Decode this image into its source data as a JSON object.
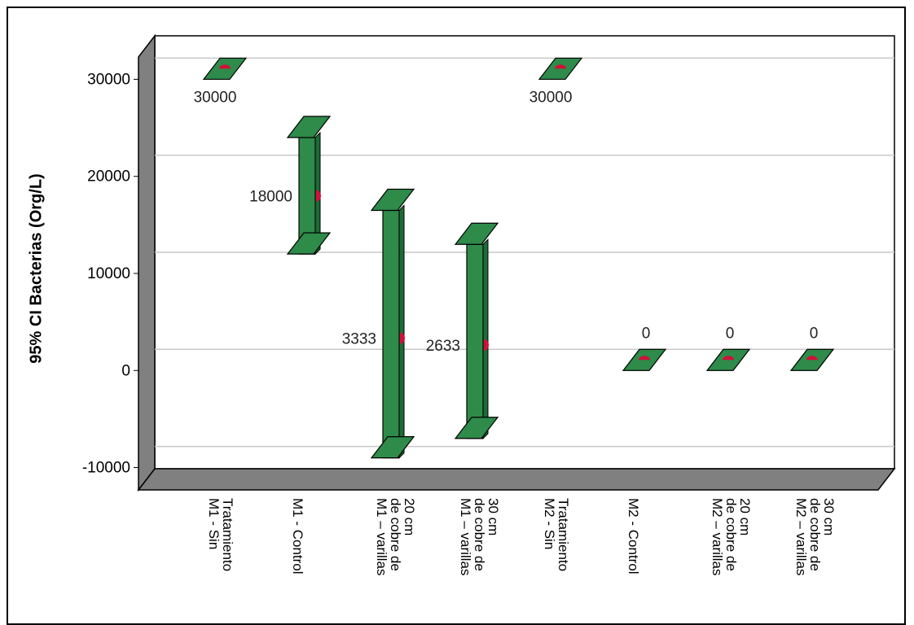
{
  "chart_data": {
    "type": "errorbar-3d",
    "ylabel": "95% CI Bacterias (Org/L)",
    "ylim": [
      -10000,
      30000
    ],
    "yticks": [
      -10000,
      0,
      10000,
      20000,
      30000
    ],
    "categories": [
      [
        "M1 - Sin",
        "Tratamiento"
      ],
      [
        "M1 - Control"
      ],
      [
        "M1 – varillas",
        "de cobre de",
        "20 cm"
      ],
      [
        "M1 – varillas",
        "de cobre de",
        "30 cm"
      ],
      [
        "M2 - Sin",
        "Tratamiento"
      ],
      [
        "M2 - Control"
      ],
      [
        "M2 – varillas",
        "de cobre de",
        "20 cm"
      ],
      [
        "M2 – varillas",
        "de cobre de",
        "30 cm"
      ]
    ],
    "means": [
      30000,
      18000,
      3333,
      2633,
      30000,
      0,
      0,
      0
    ],
    "lower": [
      30000,
      12000,
      -9000,
      -7000,
      30000,
      0,
      0,
      0
    ],
    "upper": [
      30000,
      24000,
      16500,
      13000,
      30000,
      0,
      0,
      0
    ],
    "labels": [
      "30000",
      "18000",
      "3333",
      "2633",
      "30000",
      "0",
      "0",
      "0"
    ],
    "grid": true,
    "colors": {
      "bar": "#2e8b4a",
      "bar_dark": "#1d6b36",
      "mean": "#d0103a",
      "wall": "#808080",
      "grid": "#c8c8c8"
    }
  }
}
